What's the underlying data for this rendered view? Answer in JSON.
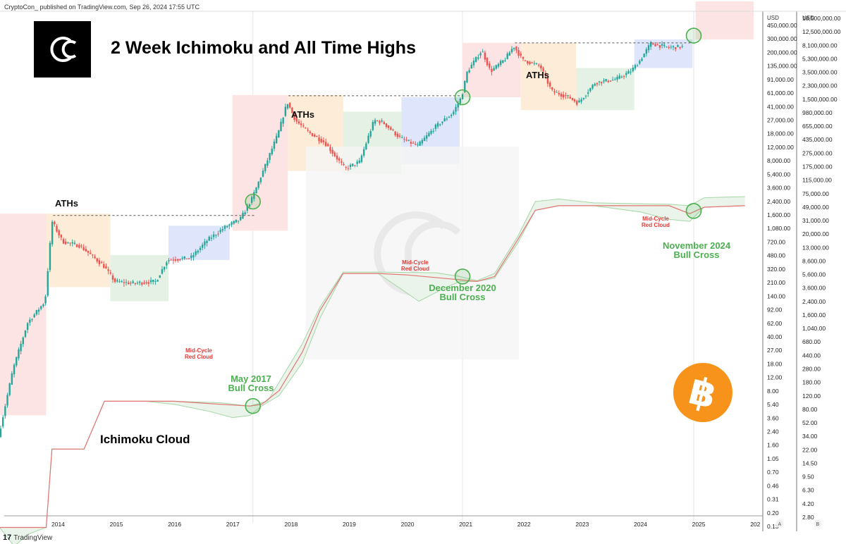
{
  "header": {
    "publisher": "CryptoCon_ published on TradingView.com, Sep 26, 2024 17:55 UTC"
  },
  "footer": {
    "brand": "TradingView"
  },
  "chart_data": {
    "type": "candlestick",
    "title": "2 Week Ichimoku and All Time Highs",
    "subtitle": "Ichimoku Cloud",
    "x_ticks": [
      "2014",
      "2015",
      "2016",
      "2017",
      "2018",
      "2019",
      "2020",
      "2021",
      "2022",
      "2023",
      "2024",
      "2025",
      "202"
    ],
    "y_axis_a": {
      "unit": "USD",
      "scale": "log",
      "ticks": [
        "450,000.00",
        "300,000.00",
        "200,000.00",
        "135,000.00",
        "91,000.00",
        "61,000.00",
        "41,000.00",
        "27,000.00",
        "18,000.00",
        "12,000.00",
        "8,000.00",
        "5,400.00",
        "3,600.00",
        "2,400.00",
        "1,600.00",
        "1,080.00",
        "720.00",
        "480.00",
        "320.00",
        "210.00",
        "140.00",
        "92.00",
        "62.00",
        "40.00",
        "27.00",
        "18.00",
        "12.00",
        "8.00",
        "5.40",
        "3.60",
        "2.40",
        "1.60",
        "1.05",
        "0.70",
        "0.46",
        "0.31",
        "0.20",
        "0.13"
      ],
      "footer": "A"
    },
    "y_axis_b": {
      "unit": "USD",
      "scale": "log",
      "ticks": [
        "18,500,000.00",
        "12,500,000.00",
        "8,100,000.00",
        "5,300,000.00",
        "3,500,000.00",
        "2,300,000.00",
        "1,500,000.00",
        "980,000.00",
        "655,000.00",
        "435,000.00",
        "275,000.00",
        "175,000.00",
        "115,000.00",
        "75,000.00",
        "49,000.00",
        "31,000.00",
        "20,000.00",
        "13,000.00",
        "8,600.00",
        "5,600.00",
        "3,600.00",
        "2,400.00",
        "1,600.00",
        "1,040.00",
        "680.00",
        "440.00",
        "280.00",
        "180.00",
        "120.00",
        "80.00",
        "52.00",
        "34.00",
        "22.00",
        "14.50",
        "9.50",
        "6.30",
        "4.20",
        "2.80"
      ],
      "footer": "B"
    },
    "ath_levels": [
      {
        "label": "ATHs",
        "price": 1150,
        "date": 2013.92
      },
      {
        "label": "ATHs",
        "price": 19700,
        "date": 2017.96
      },
      {
        "label": "ATHs",
        "price": 69000,
        "date": 2021.85
      }
    ],
    "annotations": [
      {
        "cross_label": [
          "May 2017",
          "Bull Cross"
        ],
        "date": 2017.35
      },
      {
        "cross_label": [
          "December 2020",
          "Bull Cross"
        ],
        "date": 2020.95
      },
      {
        "cross_label": [
          "November 2024",
          "Bull Cross"
        ],
        "date": 2024.9
      }
    ],
    "red_cloud_label": [
      "Mid-Cycle",
      "Red Cloud"
    ],
    "price_path": [
      [
        2013.0,
        6
      ],
      [
        2013.25,
        30
      ],
      [
        2013.5,
        90
      ],
      [
        2013.8,
        150
      ],
      [
        2013.92,
        1000
      ],
      [
        2014.1,
        620
      ],
      [
        2014.4,
        560
      ],
      [
        2014.8,
        350
      ],
      [
        2015.0,
        240
      ],
      [
        2015.3,
        230
      ],
      [
        2015.7,
        240
      ],
      [
        2015.9,
        400
      ],
      [
        2016.3,
        420
      ],
      [
        2016.6,
        650
      ],
      [
        2016.9,
        880
      ],
      [
        2017.15,
        1050
      ],
      [
        2017.35,
        1700
      ],
      [
        2017.6,
        4000
      ],
      [
        2017.8,
        8000
      ],
      [
        2017.96,
        17000
      ],
      [
        2018.1,
        11000
      ],
      [
        2018.3,
        8500
      ],
      [
        2018.6,
        6500
      ],
      [
        2018.95,
        3500
      ],
      [
        2019.2,
        4100
      ],
      [
        2019.45,
        11000
      ],
      [
        2019.6,
        10500
      ],
      [
        2019.9,
        7200
      ],
      [
        2020.2,
        6000
      ],
      [
        2020.5,
        9400
      ],
      [
        2020.8,
        13000
      ],
      [
        2020.95,
        19000
      ],
      [
        2021.05,
        35000
      ],
      [
        2021.3,
        58000
      ],
      [
        2021.45,
        35000
      ],
      [
        2021.7,
        47000
      ],
      [
        2021.85,
        64000
      ],
      [
        2022.0,
        46000
      ],
      [
        2022.3,
        40000
      ],
      [
        2022.5,
        22000
      ],
      [
        2022.8,
        19000
      ],
      [
        2022.95,
        16500
      ],
      [
        2023.25,
        27000
      ],
      [
        2023.6,
        29000
      ],
      [
        2023.85,
        35000
      ],
      [
        2024.0,
        44000
      ],
      [
        2024.2,
        68000
      ],
      [
        2024.5,
        62000
      ],
      [
        2024.73,
        63000
      ]
    ],
    "cloud_line": [
      [
        2013.0,
        0.7
      ],
      [
        2013.8,
        0.7
      ],
      [
        2013.9,
        4.5
      ],
      [
        2014.45,
        4.5
      ],
      [
        2014.8,
        14
      ],
      [
        2015.5,
        14
      ],
      [
        2016.0,
        14
      ],
      [
        2016.8,
        13
      ],
      [
        2017.3,
        12.5
      ],
      [
        2017.5,
        13
      ],
      [
        2017.8,
        18
      ],
      [
        2018.2,
        45
      ],
      [
        2018.5,
        120
      ],
      [
        2018.9,
        290
      ],
      [
        2019.5,
        290
      ],
      [
        2020.0,
        280
      ],
      [
        2020.9,
        250
      ],
      [
        2021.2,
        240
      ],
      [
        2021.5,
        270
      ],
      [
        2021.9,
        650
      ],
      [
        2022.2,
        1300
      ],
      [
        2022.6,
        1450
      ],
      [
        2023.2,
        1450
      ],
      [
        2024.5,
        1450
      ],
      [
        2024.85,
        1200
      ],
      [
        2025.1,
        1400
      ],
      [
        2025.8,
        1450
      ]
    ],
    "cloud_lower": [
      [
        2013.0,
        0.7
      ],
      [
        2013.25,
        0.45
      ],
      [
        2013.5,
        0.6
      ],
      [
        2013.8,
        0.7
      ],
      [
        2013.9,
        4.5
      ],
      [
        2014.45,
        4.5
      ],
      [
        2014.8,
        14
      ],
      [
        2015.5,
        14
      ],
      [
        2016.0,
        13
      ],
      [
        2016.6,
        11
      ],
      [
        2017.0,
        9.5
      ],
      [
        2017.3,
        10
      ],
      [
        2017.5,
        12.5
      ],
      [
        2017.8,
        16
      ],
      [
        2018.2,
        35
      ],
      [
        2018.5,
        100
      ],
      [
        2018.9,
        290
      ],
      [
        2019.5,
        290
      ],
      [
        2019.9,
        200
      ],
      [
        2020.2,
        150
      ],
      [
        2020.6,
        200
      ],
      [
        2020.9,
        240
      ],
      [
        2021.2,
        240
      ],
      [
        2021.5,
        260
      ],
      [
        2021.9,
        600
      ],
      [
        2022.2,
        1300
      ],
      [
        2022.6,
        1450
      ],
      [
        2023.2,
        1450
      ],
      [
        2024.0,
        1250
      ],
      [
        2024.5,
        1050
      ],
      [
        2024.85,
        1000
      ],
      [
        2025.1,
        1400
      ],
      [
        2025.8,
        1450
      ]
    ],
    "cloud_upper": [
      [
        2013.0,
        0.7
      ],
      [
        2013.8,
        0.7
      ],
      [
        2013.9,
        4.5
      ],
      [
        2014.45,
        4.5
      ],
      [
        2014.8,
        14
      ],
      [
        2015.5,
        14
      ],
      [
        2016.0,
        14
      ],
      [
        2016.8,
        13.5
      ],
      [
        2017.3,
        12.5
      ],
      [
        2017.6,
        14
      ],
      [
        2017.8,
        22
      ],
      [
        2018.2,
        55
      ],
      [
        2018.5,
        130
      ],
      [
        2018.9,
        300
      ],
      [
        2019.5,
        300
      ],
      [
        2020.5,
        295
      ],
      [
        2020.9,
        270
      ],
      [
        2021.2,
        245
      ],
      [
        2021.5,
        290
      ],
      [
        2021.9,
        700
      ],
      [
        2022.2,
        1600
      ],
      [
        2022.6,
        1700
      ],
      [
        2023.2,
        1550
      ],
      [
        2024.5,
        1500
      ],
      [
        2024.85,
        1450
      ],
      [
        2025.1,
        1750
      ],
      [
        2025.8,
        1800
      ]
    ],
    "colors": {
      "up": "#26a69a",
      "down": "#ef5350",
      "green_circle": "#4caf50",
      "cross_text": "#4caf50",
      "red_cloud_text": "#e53935"
    },
    "cycle_boxes": [
      {
        "phase": "red",
        "x0": 2013.0,
        "x1": 2013.8,
        "y_low": 10,
        "y_high": 1200
      },
      {
        "phase": "orange",
        "x0": 2013.8,
        "x1": 2014.9,
        "y_low": 210,
        "y_high": 1200
      },
      {
        "phase": "green",
        "x0": 2014.9,
        "x1": 2015.9,
        "y_low": 150,
        "y_high": 450
      },
      {
        "phase": "blue",
        "x0": 2015.9,
        "x1": 2016.95,
        "y_low": 400,
        "y_high": 900
      },
      {
        "phase": "red",
        "x0": 2017.0,
        "x1": 2017.95,
        "y_low": 800,
        "y_high": 20000
      },
      {
        "phase": "orange",
        "x0": 2017.95,
        "x1": 2018.9,
        "y_low": 3300,
        "y_high": 20000
      },
      {
        "phase": "green",
        "x0": 2018.9,
        "x1": 2019.9,
        "y_low": 3100,
        "y_high": 13500
      },
      {
        "phase": "blue",
        "x0": 2019.9,
        "x1": 2020.9,
        "y_low": 3900,
        "y_high": 19000
      },
      {
        "phase": "red",
        "x0": 2020.95,
        "x1": 2021.95,
        "y_low": 19000,
        "y_high": 69000
      },
      {
        "phase": "orange",
        "x0": 2021.95,
        "x1": 2022.9,
        "y_low": 14000,
        "y_high": 69000
      },
      {
        "phase": "green",
        "x0": 2022.9,
        "x1": 2023.9,
        "y_low": 14000,
        "y_high": 38000
      },
      {
        "phase": "blue",
        "x0": 2023.9,
        "x1": 2024.9,
        "y_low": 38000,
        "y_high": 75000
      },
      {
        "phase": "red",
        "x0": 2024.95,
        "x1": 2025.95,
        "y_low": 75000,
        "y_high": 185000
      }
    ]
  }
}
